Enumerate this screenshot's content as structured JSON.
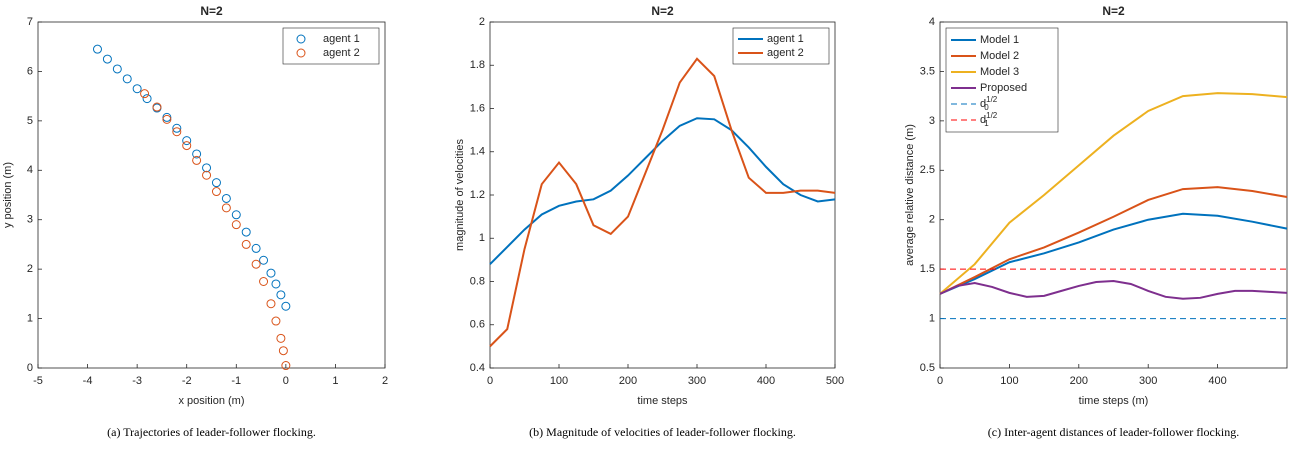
{
  "chart_data": [
    {
      "type": "scatter",
      "title": "N=2",
      "xlabel": "x position (m)",
      "ylabel": "y position (m)",
      "caption": "(a)  Trajectories of leader-follower flocking.",
      "xlim": [
        -5,
        2
      ],
      "xticks": [
        -5,
        -4,
        -3,
        -2,
        -1,
        0,
        1,
        2
      ],
      "ylim": [
        0,
        7
      ],
      "yticks": [
        0,
        1,
        2,
        3,
        4,
        5,
        6,
        7
      ],
      "legend": "upper right",
      "series": [
        {
          "name": "agent 1",
          "color": "#0072BD",
          "x": [
            -3.8,
            -3.6,
            -3.4,
            -3.2,
            -3.0,
            -2.8,
            -2.6,
            -2.4,
            -2.2,
            -2.0,
            -1.8,
            -1.6,
            -1.4,
            -1.2,
            -1.0,
            -0.8,
            -0.6,
            -0.45,
            -0.3,
            -0.2,
            -0.1,
            0
          ],
          "y": [
            6.45,
            6.25,
            6.05,
            5.85,
            5.65,
            5.45,
            5.26,
            5.07,
            4.85,
            4.6,
            4.33,
            4.05,
            3.75,
            3.43,
            3.1,
            2.75,
            2.42,
            2.18,
            1.92,
            1.7,
            1.48,
            1.25
          ]
        },
        {
          "name": "agent 2",
          "color": "#D95319",
          "x": [
            -2.85,
            -2.6,
            -2.4,
            -2.2,
            -2.0,
            -1.8,
            -1.6,
            -1.4,
            -1.2,
            -1.0,
            -0.8,
            -0.6,
            -0.45,
            -0.3,
            -0.2,
            -0.1,
            -0.05,
            0
          ],
          "y": [
            5.55,
            5.28,
            5.03,
            4.78,
            4.5,
            4.2,
            3.9,
            3.57,
            3.24,
            2.9,
            2.5,
            2.1,
            1.75,
            1.3,
            0.95,
            0.6,
            0.35,
            0.05
          ]
        }
      ]
    },
    {
      "type": "line",
      "title": "N=2",
      "xlabel": "time steps",
      "ylabel": "magnitude of velocities",
      "caption": "(b)  Magnitude of velocities of leader-follower flocking.",
      "xlim": [
        0,
        500
      ],
      "xticks": [
        0,
        100,
        200,
        300,
        400,
        500
      ],
      "ylim": [
        0.4,
        2
      ],
      "yticks": [
        0.4,
        0.6,
        0.8,
        1,
        1.2,
        1.4,
        1.6,
        1.8,
        2
      ],
      "legend": "upper right",
      "series": [
        {
          "name": "agent 1",
          "color": "#0072BD",
          "x": [
            0,
            25,
            50,
            75,
            100,
            125,
            150,
            175,
            200,
            225,
            250,
            275,
            300,
            325,
            350,
            375,
            400,
            425,
            450,
            475,
            500
          ],
          "values": [
            0.88,
            0.96,
            1.04,
            1.11,
            1.15,
            1.17,
            1.18,
            1.22,
            1.29,
            1.37,
            1.45,
            1.52,
            1.555,
            1.55,
            1.5,
            1.42,
            1.33,
            1.25,
            1.2,
            1.17,
            1.18
          ]
        },
        {
          "name": "agent 2",
          "color": "#D95319",
          "x": [
            0,
            25,
            50,
            75,
            100,
            125,
            150,
            175,
            200,
            225,
            250,
            275,
            300,
            325,
            350,
            375,
            400,
            425,
            450,
            475,
            500
          ],
          "values": [
            0.5,
            0.58,
            0.95,
            1.25,
            1.35,
            1.25,
            1.06,
            1.02,
            1.1,
            1.3,
            1.5,
            1.72,
            1.83,
            1.75,
            1.5,
            1.28,
            1.21,
            1.21,
            1.22,
            1.22,
            1.21
          ]
        }
      ]
    },
    {
      "type": "line",
      "title": "N=2",
      "xlabel": "time steps (m)",
      "ylabel": "average relative distance (m)",
      "caption": "(c)  Inter-agent distances of leader-follower flocking.",
      "xlim": [
        0,
        500
      ],
      "xticks": [
        0,
        100,
        200,
        300,
        400
      ],
      "ylim": [
        0.5,
        4
      ],
      "yticks": [
        0.5,
        1,
        1.5,
        2,
        2.5,
        3,
        3.5,
        4
      ],
      "legend": "upper left",
      "series": [
        {
          "name": "Model 1",
          "color": "#0072BD",
          "x": [
            0,
            50,
            100,
            150,
            200,
            250,
            300,
            350,
            400,
            450,
            500
          ],
          "values": [
            1.25,
            1.4,
            1.57,
            1.66,
            1.77,
            1.9,
            2.0,
            2.06,
            2.04,
            1.98,
            1.91
          ]
        },
        {
          "name": "Model 2",
          "color": "#D95319",
          "x": [
            0,
            50,
            100,
            150,
            200,
            250,
            300,
            350,
            400,
            450,
            500
          ],
          "values": [
            1.25,
            1.42,
            1.6,
            1.72,
            1.87,
            2.03,
            2.2,
            2.31,
            2.33,
            2.29,
            2.23
          ]
        },
        {
          "name": "Model 3",
          "color": "#EDB120",
          "x": [
            0,
            50,
            100,
            150,
            200,
            250,
            300,
            350,
            400,
            450,
            500
          ],
          "values": [
            1.25,
            1.55,
            1.97,
            2.25,
            2.55,
            2.85,
            3.1,
            3.25,
            3.28,
            3.27,
            3.24
          ]
        },
        {
          "name": "Proposed",
          "color": "#7E2F8E",
          "x": [
            0,
            25,
            50,
            75,
            100,
            125,
            150,
            175,
            200,
            225,
            250,
            275,
            300,
            325,
            350,
            375,
            400,
            425,
            450,
            475,
            500
          ],
          "values": [
            1.25,
            1.33,
            1.36,
            1.32,
            1.26,
            1.22,
            1.23,
            1.28,
            1.33,
            1.37,
            1.38,
            1.35,
            1.28,
            1.22,
            1.2,
            1.21,
            1.25,
            1.28,
            1.28,
            1.27,
            1.26
          ]
        },
        {
          "name": "d",
          "subscript": "0",
          "superscript": "1/2",
          "color": "#0072BD",
          "dashed": true,
          "x": [
            0,
            500
          ],
          "values": [
            1,
            1
          ]
        },
        {
          "name": "d",
          "subscript": "1",
          "superscript": "1/2",
          "color": "#FF0000",
          "dashed": true,
          "x": [
            0,
            500
          ],
          "values": [
            1.5,
            1.5
          ]
        }
      ]
    }
  ]
}
